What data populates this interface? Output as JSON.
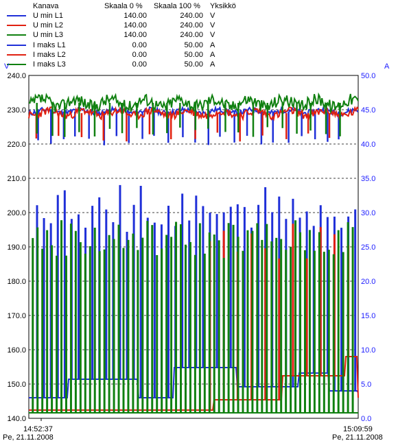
{
  "legend": {
    "headers": {
      "channel": "Kanava",
      "scale0": "Skaala 0 %",
      "scale100": "Skaala 100 %",
      "unit": "Yksikkö"
    },
    "rows": [
      {
        "name": "U min L1",
        "scale0": "140.00",
        "scale100": "240.00",
        "unit": "V",
        "color": "#1f2fd8"
      },
      {
        "name": "U min L2",
        "scale0": "140.00",
        "scale100": "240.00",
        "unit": "V",
        "color": "#e02010"
      },
      {
        "name": "U min L3",
        "scale0": "140.00",
        "scale100": "240.00",
        "unit": "V",
        "color": "#108010"
      },
      {
        "name": "I maks L1",
        "scale0": "0.00",
        "scale100": "50.00",
        "unit": "A",
        "color": "#1f2fd8"
      },
      {
        "name": "I maks L2",
        "scale0": "0.00",
        "scale100": "50.00",
        "unit": "A",
        "color": "#e02010"
      },
      {
        "name": "I maks L3",
        "scale0": "0.00",
        "scale100": "50.00",
        "unit": "A",
        "color": "#108010"
      }
    ]
  },
  "chart_data": {
    "type": "line",
    "left_axis": {
      "unit": "V",
      "ylim": [
        140,
        240
      ],
      "ticks": [
        "140.0",
        "150.0",
        "160.0",
        "170.0",
        "180.0",
        "190.0",
        "200.0",
        "210.0",
        "220.0",
        "230.0",
        "240.0"
      ]
    },
    "right_axis": {
      "unit": "A",
      "ylim": [
        0,
        50
      ],
      "ticks": [
        "0.0",
        "5.0",
        "10.0",
        "15.0",
        "20.0",
        "25.0",
        "30.0",
        "35.0",
        "40.0",
        "45.0",
        "50.0"
      ]
    },
    "grid": "horizontal dashed every 10 V",
    "x_start": {
      "time": "14:52:37",
      "date": "Pe, 21.11.2008"
    },
    "x_end": {
      "time": "15:09:59",
      "date": "Pe, 21.11.2008"
    },
    "series": [
      {
        "name": "U min L1",
        "axis": "left",
        "color": "#1f2fd8",
        "base": 229.5,
        "noise": 0.8,
        "dip_to": 219.5,
        "dips": 24,
        "seed": 11
      },
      {
        "name": "U min L2",
        "axis": "left",
        "color": "#e02010",
        "base": 229.0,
        "noise": 1.2,
        "dip_to": 220.5,
        "dips": 14,
        "seed": 23
      },
      {
        "name": "U min L3",
        "axis": "left",
        "color": "#108010",
        "base": 232.0,
        "noise": 1.8,
        "dip_to": 222.0,
        "dips": 22,
        "seed": 37
      },
      {
        "name": "I maks L1",
        "axis": "right",
        "color": "#1f2fd8",
        "baseline_steps": [
          [
            0.0,
            3.0
          ],
          [
            0.12,
            5.7
          ],
          [
            0.33,
            3.0
          ],
          [
            0.44,
            7.4
          ],
          [
            0.63,
            4.6
          ],
          [
            0.82,
            6.6
          ],
          [
            0.91,
            4.0
          ],
          [
            1.0,
            3.8
          ]
        ],
        "spike_peak": 32.0,
        "spike_step": 0.021,
        "spike_start": 0.025
      },
      {
        "name": "I maks L2",
        "axis": "right",
        "color": "#e02010",
        "baseline_steps": [
          [
            0.0,
            1.2
          ],
          [
            0.55,
            1.2
          ],
          [
            0.56,
            2.7
          ],
          [
            0.77,
            6.2
          ],
          [
            0.96,
            9.0
          ],
          [
            1.0,
            3.0
          ]
        ],
        "spike_peak": 28.0,
        "spike_step": 0.042,
        "spike_start": 0.55
      },
      {
        "name": "I maks L3",
        "axis": "right",
        "color": "#108010",
        "baseline_steps": [
          [
            0.0,
            0.8
          ],
          [
            1.0,
            0.8
          ]
        ],
        "spike_peak": 28.5,
        "spike_step": 0.0145,
        "spike_start": 0.012
      }
    ]
  }
}
